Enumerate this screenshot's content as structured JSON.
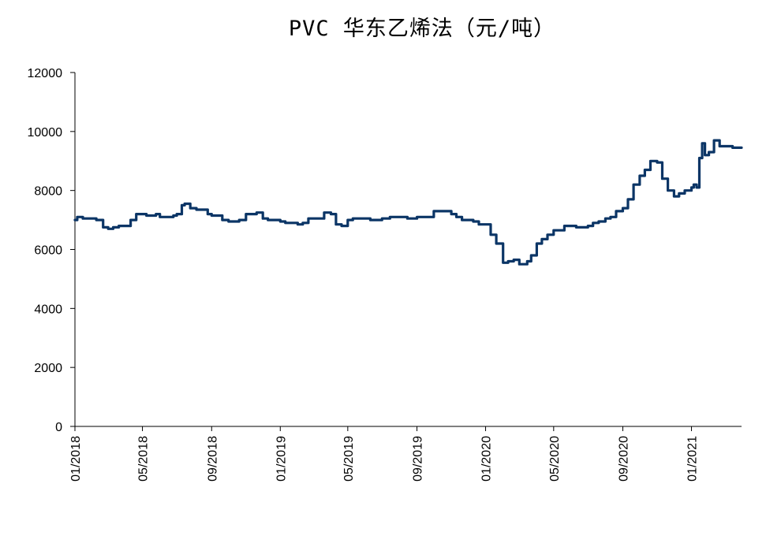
{
  "chart_data": {
    "type": "line",
    "title": "PVC 华东乙烯法（元/吨）",
    "xlabel": "",
    "ylabel": "",
    "ylim": [
      0,
      12000
    ],
    "yticks": [
      0,
      2000,
      4000,
      6000,
      8000,
      10000,
      12000
    ],
    "x_tick_labels": [
      "01/2018",
      "05/2018",
      "09/2018",
      "01/2019",
      "05/2019",
      "09/2019",
      "01/2020",
      "05/2020",
      "09/2020",
      "01/2021"
    ],
    "grid": false,
    "legend": "none",
    "line_color": "#0b3566",
    "series": [
      {
        "x": [
          "2018-01-01",
          "2018-01-05",
          "2018-01-15",
          "2018-02-01",
          "2018-02-08",
          "2018-02-20",
          "2018-03-01",
          "2018-03-10",
          "2018-03-20",
          "2018-04-01",
          "2018-04-10",
          "2018-04-20",
          "2018-05-01",
          "2018-05-08",
          "2018-05-15",
          "2018-05-25",
          "2018-06-01",
          "2018-06-15",
          "2018-06-25",
          "2018-07-01",
          "2018-07-10",
          "2018-07-15",
          "2018-07-25",
          "2018-08-05",
          "2018-08-15",
          "2018-08-25",
          "2018-09-01",
          "2018-09-10",
          "2018-09-20",
          "2018-10-01",
          "2018-10-10",
          "2018-10-20",
          "2018-11-01",
          "2018-11-10",
          "2018-11-20",
          "2018-12-01",
          "2018-12-10",
          "2018-12-20",
          "2019-01-01",
          "2019-01-10",
          "2019-01-20",
          "2019-02-01",
          "2019-02-10",
          "2019-02-20",
          "2019-03-01",
          "2019-03-10",
          "2019-03-20",
          "2019-04-01",
          "2019-04-10",
          "2019-04-20",
          "2019-05-01",
          "2019-05-10",
          "2019-05-20",
          "2019-06-01",
          "2019-06-10",
          "2019-06-20",
          "2019-07-01",
          "2019-07-15",
          "2019-08-01",
          "2019-08-15",
          "2019-09-01",
          "2019-09-15",
          "2019-10-01",
          "2019-10-15",
          "2019-11-01",
          "2019-11-10",
          "2019-11-20",
          "2019-12-01",
          "2019-12-10",
          "2019-12-20",
          "2020-01-01",
          "2020-01-10",
          "2020-01-20",
          "2020-02-01",
          "2020-02-10",
          "2020-02-20",
          "2020-03-01",
          "2020-03-08",
          "2020-03-15",
          "2020-03-22",
          "2020-04-01",
          "2020-04-10",
          "2020-04-20",
          "2020-05-01",
          "2020-05-10",
          "2020-05-20",
          "2020-06-01",
          "2020-06-10",
          "2020-06-20",
          "2020-07-01",
          "2020-07-10",
          "2020-07-20",
          "2020-08-01",
          "2020-08-10",
          "2020-08-20",
          "2020-09-01",
          "2020-09-10",
          "2020-09-20",
          "2020-10-01",
          "2020-10-10",
          "2020-10-20",
          "2020-11-01",
          "2020-11-10",
          "2020-11-20",
          "2020-12-01",
          "2020-12-10",
          "2020-12-20",
          "2021-01-01",
          "2021-01-05",
          "2021-01-10",
          "2021-01-15",
          "2021-01-20",
          "2021-01-25",
          "2021-02-01",
          "2021-02-10",
          "2021-02-20",
          "2021-03-01",
          "2021-03-15",
          "2021-03-31"
        ],
        "values": [
          7000,
          7100,
          7050,
          7050,
          7000,
          6750,
          6700,
          6750,
          6800,
          6800,
          7000,
          7200,
          7200,
          7150,
          7150,
          7200,
          7100,
          7100,
          7150,
          7200,
          7500,
          7550,
          7400,
          7350,
          7350,
          7200,
          7150,
          7150,
          7000,
          6950,
          6950,
          7000,
          7200,
          7200,
          7250,
          7050,
          7000,
          7000,
          6950,
          6900,
          6900,
          6850,
          6900,
          7050,
          7050,
          7050,
          7250,
          7200,
          6850,
          6800,
          7000,
          7050,
          7050,
          7050,
          7000,
          7000,
          7050,
          7100,
          7100,
          7050,
          7100,
          7100,
          7300,
          7300,
          7200,
          7100,
          7000,
          7000,
          6950,
          6850,
          6850,
          6500,
          6200,
          5550,
          5600,
          5650,
          5500,
          5500,
          5600,
          5800,
          6200,
          6350,
          6500,
          6650,
          6650,
          6800,
          6800,
          6750,
          6750,
          6800,
          6900,
          6950,
          7050,
          7100,
          7300,
          7400,
          7700,
          8200,
          8500,
          8700,
          9000,
          8950,
          8400,
          8000,
          7800,
          7900,
          8000,
          8100,
          8200,
          8100,
          9100,
          9600,
          9200,
          9300,
          9700,
          9500,
          9500,
          9450,
          9450
        ]
      }
    ]
  }
}
